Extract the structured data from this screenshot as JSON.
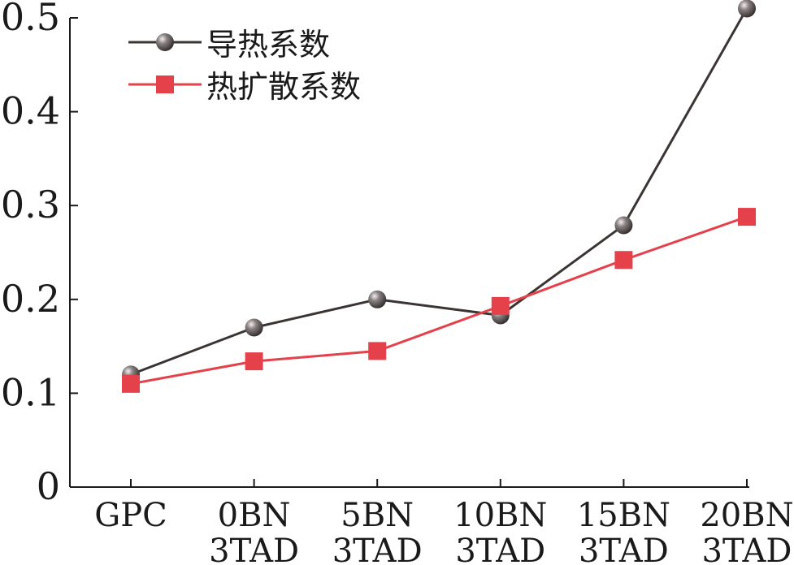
{
  "chart_data": {
    "type": "line",
    "title": "",
    "xlabel": "",
    "ylabel": "",
    "categories": [
      [
        "GPC"
      ],
      [
        "0BN",
        "3TAD"
      ],
      [
        "5BN",
        "3TAD"
      ],
      [
        "10BN",
        "3TAD"
      ],
      [
        "15BN",
        "3TAD"
      ],
      [
        "20BN",
        "3TAD"
      ]
    ],
    "ylim": [
      0,
      0.5
    ],
    "yticks": [
      0,
      0.1,
      0.2,
      0.3,
      0.4,
      0.5
    ],
    "ytick_labels": [
      "0",
      "0.1",
      "0.2",
      "0.3",
      "0.4",
      "0.5"
    ],
    "grid": false,
    "legend_position": "top-left",
    "series": [
      {
        "name": "导热系数",
        "marker": "sphere",
        "color": "#3a3433",
        "marker_color": "#4a4444",
        "values": [
          0.12,
          0.17,
          0.2,
          0.183,
          0.279,
          0.51
        ]
      },
      {
        "name": "热扩散系数",
        "marker": "square",
        "color": "#e5414b",
        "marker_color": "#e5414b",
        "values": [
          0.11,
          0.134,
          0.145,
          0.193,
          0.242,
          0.288
        ]
      }
    ]
  }
}
